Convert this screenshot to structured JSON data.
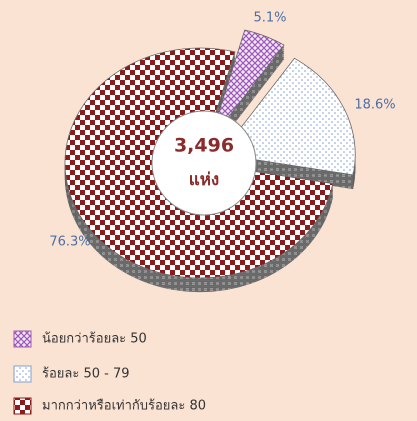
{
  "chart_data": {
    "type": "pie",
    "categories": [
      "น้อยกว่าร้อยละ 50",
      "ร้อยละ 50 - 79",
      "มากกว่าหรือเท่ากับร้อยละ 80"
    ],
    "values": [
      5.1,
      18.6,
      76.3
    ],
    "value_labels": [
      "5.1%",
      "18.6%",
      "76.3%"
    ],
    "colors": [
      "#9b59b6",
      "#7f9fd0",
      "#8b1a1a"
    ],
    "center_label": [
      "3,496",
      "แห่ง"
    ]
  }
}
